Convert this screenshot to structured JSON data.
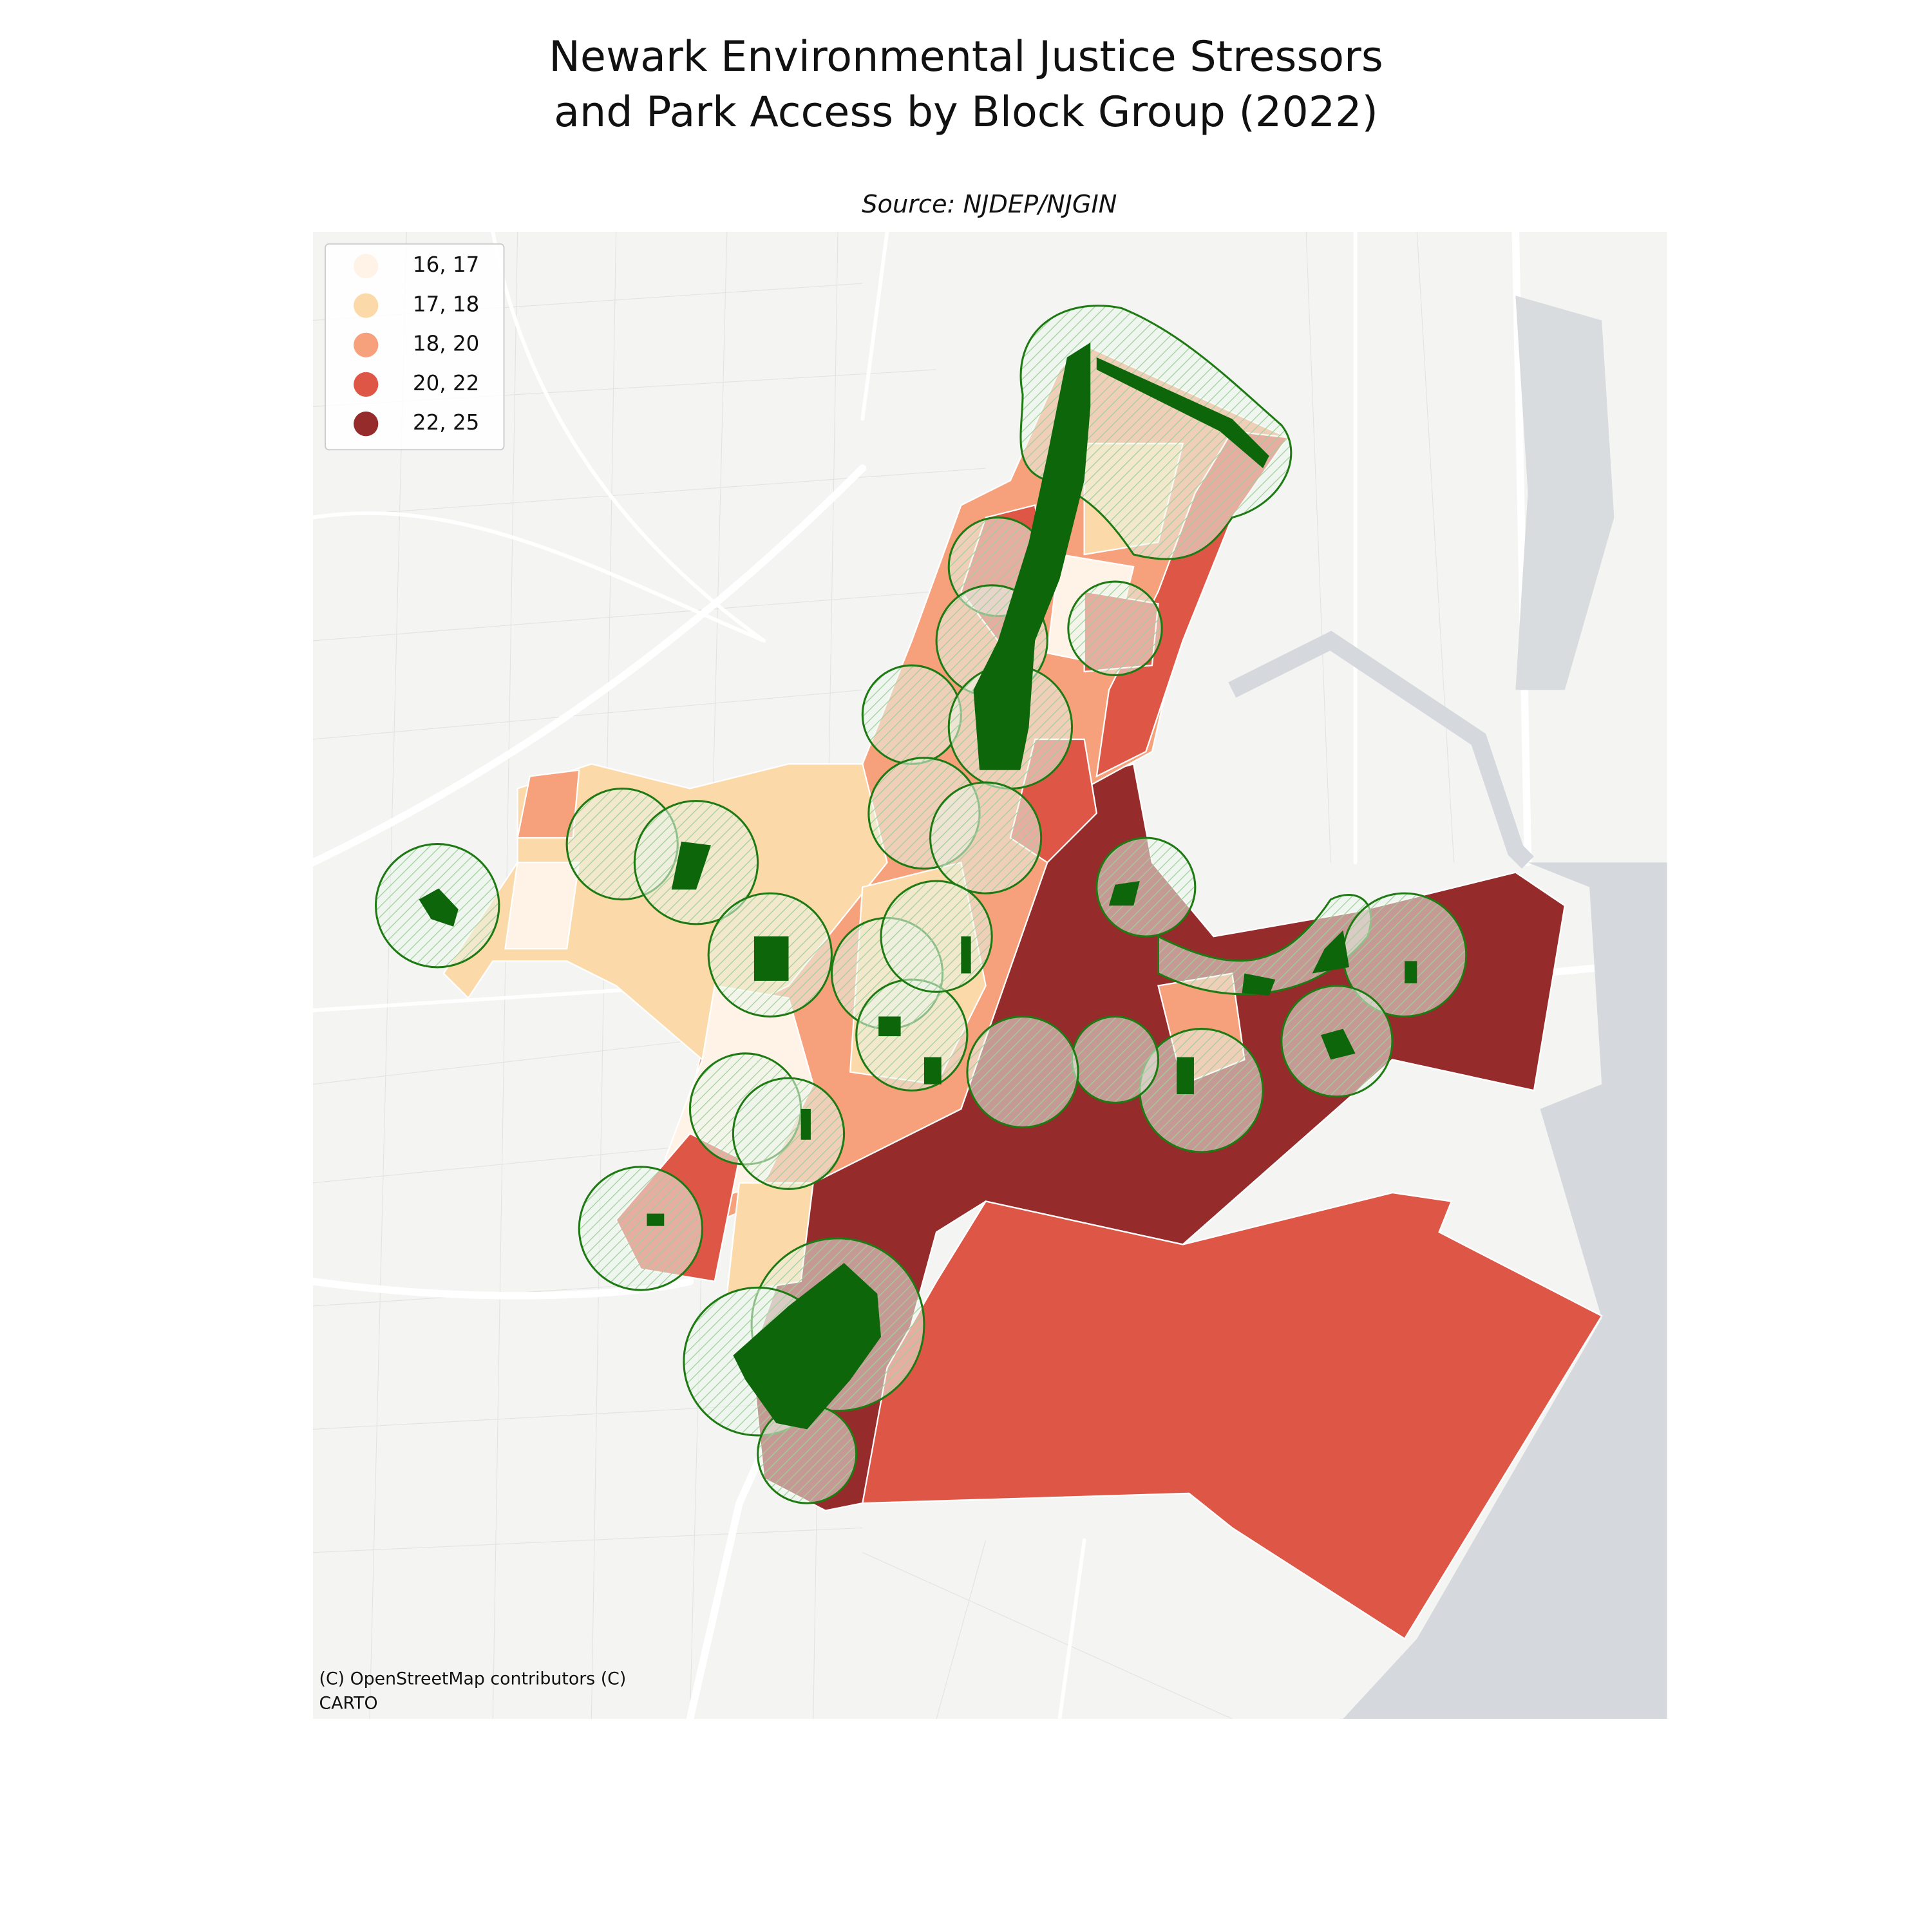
{
  "title_lines": [
    "Newark Environmental Justice Stressors",
    "and Park Access by Block Group (2022)"
  ],
  "subtitle": "Source: NJDEP/NJGIN",
  "legend": {
    "items": [
      {
        "label": "16, 17",
        "color": "#fff3e8"
      },
      {
        "label": "17, 18",
        "color": "#fbd9a9"
      },
      {
        "label": "18, 20",
        "color": "#f7a07c"
      },
      {
        "label": "20, 22",
        "color": "#de5646"
      },
      {
        "label": "22, 25",
        "color": "#962b2b"
      }
    ]
  },
  "attribution_lines": [
    "(C) OpenStreetMap contributors (C)",
    "CARTO"
  ]
}
